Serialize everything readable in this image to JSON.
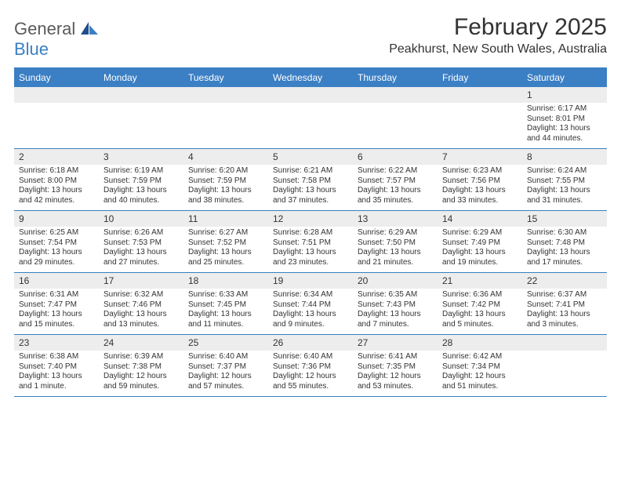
{
  "colors": {
    "header_blue": "#3b7fc4",
    "row_gray": "#ededed",
    "text": "#333333",
    "logo_gray": "#5a5a5a",
    "background": "#ffffff"
  },
  "typography": {
    "title_fontsize": 30,
    "location_fontsize": 16,
    "dayname_fontsize": 12,
    "daynum_fontsize": 12,
    "body_fontsize": 10,
    "font_family": "Arial"
  },
  "logo": {
    "text_general": "General",
    "text_blue": "Blue"
  },
  "title": "February 2025",
  "location": "Peakhurst, New South Wales, Australia",
  "daynames": [
    "Sunday",
    "Monday",
    "Tuesday",
    "Wednesday",
    "Thursday",
    "Friday",
    "Saturday"
  ],
  "weeks": [
    [
      {
        "num": "",
        "sunrise": "",
        "sunset": "",
        "daylight": ""
      },
      {
        "num": "",
        "sunrise": "",
        "sunset": "",
        "daylight": ""
      },
      {
        "num": "",
        "sunrise": "",
        "sunset": "",
        "daylight": ""
      },
      {
        "num": "",
        "sunrise": "",
        "sunset": "",
        "daylight": ""
      },
      {
        "num": "",
        "sunrise": "",
        "sunset": "",
        "daylight": ""
      },
      {
        "num": "",
        "sunrise": "",
        "sunset": "",
        "daylight": ""
      },
      {
        "num": "1",
        "sunrise": "Sunrise: 6:17 AM",
        "sunset": "Sunset: 8:01 PM",
        "daylight": "Daylight: 13 hours and 44 minutes."
      }
    ],
    [
      {
        "num": "2",
        "sunrise": "Sunrise: 6:18 AM",
        "sunset": "Sunset: 8:00 PM",
        "daylight": "Daylight: 13 hours and 42 minutes."
      },
      {
        "num": "3",
        "sunrise": "Sunrise: 6:19 AM",
        "sunset": "Sunset: 7:59 PM",
        "daylight": "Daylight: 13 hours and 40 minutes."
      },
      {
        "num": "4",
        "sunrise": "Sunrise: 6:20 AM",
        "sunset": "Sunset: 7:59 PM",
        "daylight": "Daylight: 13 hours and 38 minutes."
      },
      {
        "num": "5",
        "sunrise": "Sunrise: 6:21 AM",
        "sunset": "Sunset: 7:58 PM",
        "daylight": "Daylight: 13 hours and 37 minutes."
      },
      {
        "num": "6",
        "sunrise": "Sunrise: 6:22 AM",
        "sunset": "Sunset: 7:57 PM",
        "daylight": "Daylight: 13 hours and 35 minutes."
      },
      {
        "num": "7",
        "sunrise": "Sunrise: 6:23 AM",
        "sunset": "Sunset: 7:56 PM",
        "daylight": "Daylight: 13 hours and 33 minutes."
      },
      {
        "num": "8",
        "sunrise": "Sunrise: 6:24 AM",
        "sunset": "Sunset: 7:55 PM",
        "daylight": "Daylight: 13 hours and 31 minutes."
      }
    ],
    [
      {
        "num": "9",
        "sunrise": "Sunrise: 6:25 AM",
        "sunset": "Sunset: 7:54 PM",
        "daylight": "Daylight: 13 hours and 29 minutes."
      },
      {
        "num": "10",
        "sunrise": "Sunrise: 6:26 AM",
        "sunset": "Sunset: 7:53 PM",
        "daylight": "Daylight: 13 hours and 27 minutes."
      },
      {
        "num": "11",
        "sunrise": "Sunrise: 6:27 AM",
        "sunset": "Sunset: 7:52 PM",
        "daylight": "Daylight: 13 hours and 25 minutes."
      },
      {
        "num": "12",
        "sunrise": "Sunrise: 6:28 AM",
        "sunset": "Sunset: 7:51 PM",
        "daylight": "Daylight: 13 hours and 23 minutes."
      },
      {
        "num": "13",
        "sunrise": "Sunrise: 6:29 AM",
        "sunset": "Sunset: 7:50 PM",
        "daylight": "Daylight: 13 hours and 21 minutes."
      },
      {
        "num": "14",
        "sunrise": "Sunrise: 6:29 AM",
        "sunset": "Sunset: 7:49 PM",
        "daylight": "Daylight: 13 hours and 19 minutes."
      },
      {
        "num": "15",
        "sunrise": "Sunrise: 6:30 AM",
        "sunset": "Sunset: 7:48 PM",
        "daylight": "Daylight: 13 hours and 17 minutes."
      }
    ],
    [
      {
        "num": "16",
        "sunrise": "Sunrise: 6:31 AM",
        "sunset": "Sunset: 7:47 PM",
        "daylight": "Daylight: 13 hours and 15 minutes."
      },
      {
        "num": "17",
        "sunrise": "Sunrise: 6:32 AM",
        "sunset": "Sunset: 7:46 PM",
        "daylight": "Daylight: 13 hours and 13 minutes."
      },
      {
        "num": "18",
        "sunrise": "Sunrise: 6:33 AM",
        "sunset": "Sunset: 7:45 PM",
        "daylight": "Daylight: 13 hours and 11 minutes."
      },
      {
        "num": "19",
        "sunrise": "Sunrise: 6:34 AM",
        "sunset": "Sunset: 7:44 PM",
        "daylight": "Daylight: 13 hours and 9 minutes."
      },
      {
        "num": "20",
        "sunrise": "Sunrise: 6:35 AM",
        "sunset": "Sunset: 7:43 PM",
        "daylight": "Daylight: 13 hours and 7 minutes."
      },
      {
        "num": "21",
        "sunrise": "Sunrise: 6:36 AM",
        "sunset": "Sunset: 7:42 PM",
        "daylight": "Daylight: 13 hours and 5 minutes."
      },
      {
        "num": "22",
        "sunrise": "Sunrise: 6:37 AM",
        "sunset": "Sunset: 7:41 PM",
        "daylight": "Daylight: 13 hours and 3 minutes."
      }
    ],
    [
      {
        "num": "23",
        "sunrise": "Sunrise: 6:38 AM",
        "sunset": "Sunset: 7:40 PM",
        "daylight": "Daylight: 13 hours and 1 minute."
      },
      {
        "num": "24",
        "sunrise": "Sunrise: 6:39 AM",
        "sunset": "Sunset: 7:38 PM",
        "daylight": "Daylight: 12 hours and 59 minutes."
      },
      {
        "num": "25",
        "sunrise": "Sunrise: 6:40 AM",
        "sunset": "Sunset: 7:37 PM",
        "daylight": "Daylight: 12 hours and 57 minutes."
      },
      {
        "num": "26",
        "sunrise": "Sunrise: 6:40 AM",
        "sunset": "Sunset: 7:36 PM",
        "daylight": "Daylight: 12 hours and 55 minutes."
      },
      {
        "num": "27",
        "sunrise": "Sunrise: 6:41 AM",
        "sunset": "Sunset: 7:35 PM",
        "daylight": "Daylight: 12 hours and 53 minutes."
      },
      {
        "num": "28",
        "sunrise": "Sunrise: 6:42 AM",
        "sunset": "Sunset: 7:34 PM",
        "daylight": "Daylight: 12 hours and 51 minutes."
      },
      {
        "num": "",
        "sunrise": "",
        "sunset": "",
        "daylight": ""
      }
    ]
  ]
}
